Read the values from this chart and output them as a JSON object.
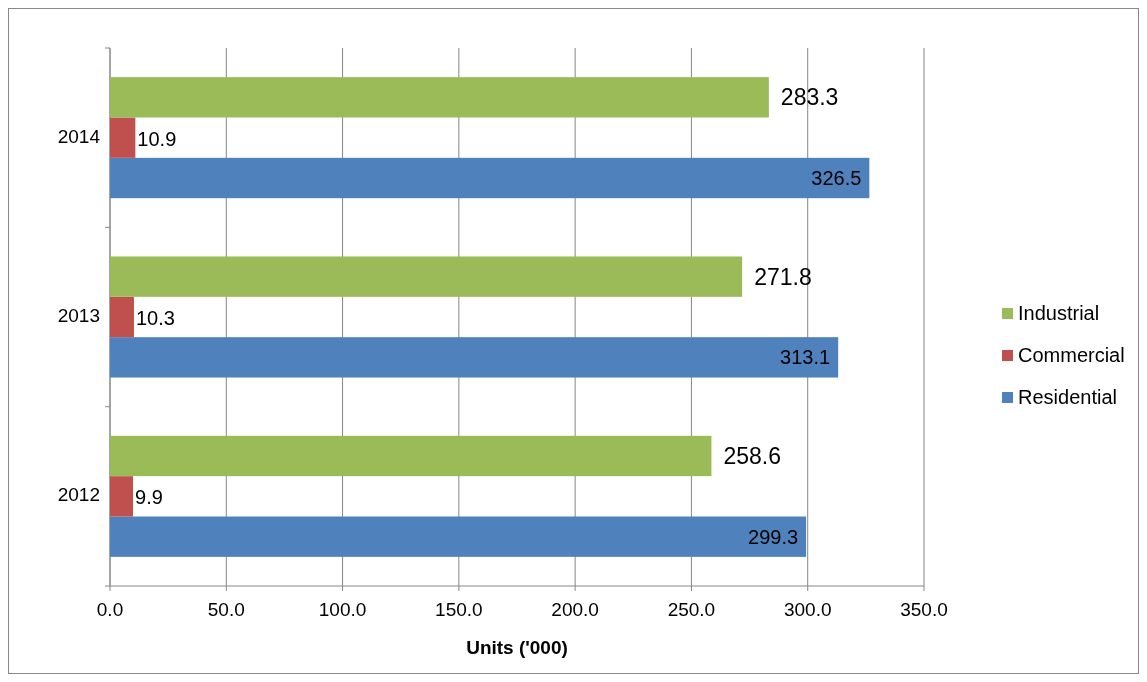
{
  "chart_data": {
    "type": "bar",
    "orientation": "horizontal",
    "xlabel": "Units ('000)",
    "categories": [
      "2014",
      "2013",
      "2012"
    ],
    "series": [
      {
        "name": "Residential",
        "color": "#4f81bd",
        "values": [
          326.5,
          313.1,
          299.3
        ]
      },
      {
        "name": "Commercial",
        "color": "#c0504d",
        "values": [
          10.9,
          10.3,
          9.9
        ]
      },
      {
        "name": "Industrial",
        "color": "#9bbb59",
        "values": [
          283.3,
          271.8,
          258.6
        ]
      }
    ],
    "xlim": [
      0,
      350
    ],
    "xticks": [
      {
        "value": 0,
        "label": "0.0"
      },
      {
        "value": 50,
        "label": "50.0"
      },
      {
        "value": 100,
        "label": "100.0"
      },
      {
        "value": 150,
        "label": "150.0"
      },
      {
        "value": 200,
        "label": "200.0"
      },
      {
        "value": 250,
        "label": "250.0"
      },
      {
        "value": 300,
        "label": "300.0"
      },
      {
        "value": 350,
        "label": "350.0"
      }
    ],
    "grid": "x",
    "legend": "right",
    "data_labels": true
  }
}
